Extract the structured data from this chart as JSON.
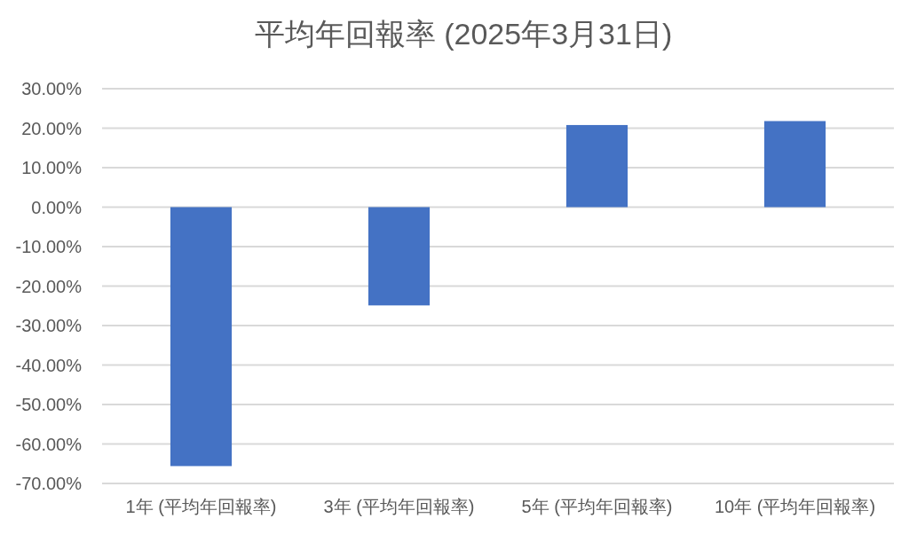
{
  "chart_data": {
    "type": "bar",
    "title": "平均年回報率 (2025年3月31日)",
    "categories": [
      "1年 (平均年回報率)",
      "3年 (平均年回報率)",
      "5年 (平均年回報率)",
      "10年 (平均年回報率)"
    ],
    "values": [
      -65.6,
      -24.9,
      20.8,
      21.8
    ],
    "color": "#4472c4",
    "ylim": [
      -70,
      30
    ],
    "yticks": [
      {
        "value": 30,
        "label": "30.00%"
      },
      {
        "value": 20,
        "label": "20.00%"
      },
      {
        "value": 10,
        "label": "10.00%"
      },
      {
        "value": 0,
        "label": "0.00%"
      },
      {
        "value": -10,
        "label": "-10.00%"
      },
      {
        "value": -20,
        "label": "-20.00%"
      },
      {
        "value": -30,
        "label": "-30.00%"
      },
      {
        "value": -40,
        "label": "-40.00%"
      },
      {
        "value": -50,
        "label": "-50.00%"
      },
      {
        "value": -60,
        "label": "-60.00%"
      },
      {
        "value": -70,
        "label": "-70.00%"
      }
    ],
    "grid": "y"
  }
}
